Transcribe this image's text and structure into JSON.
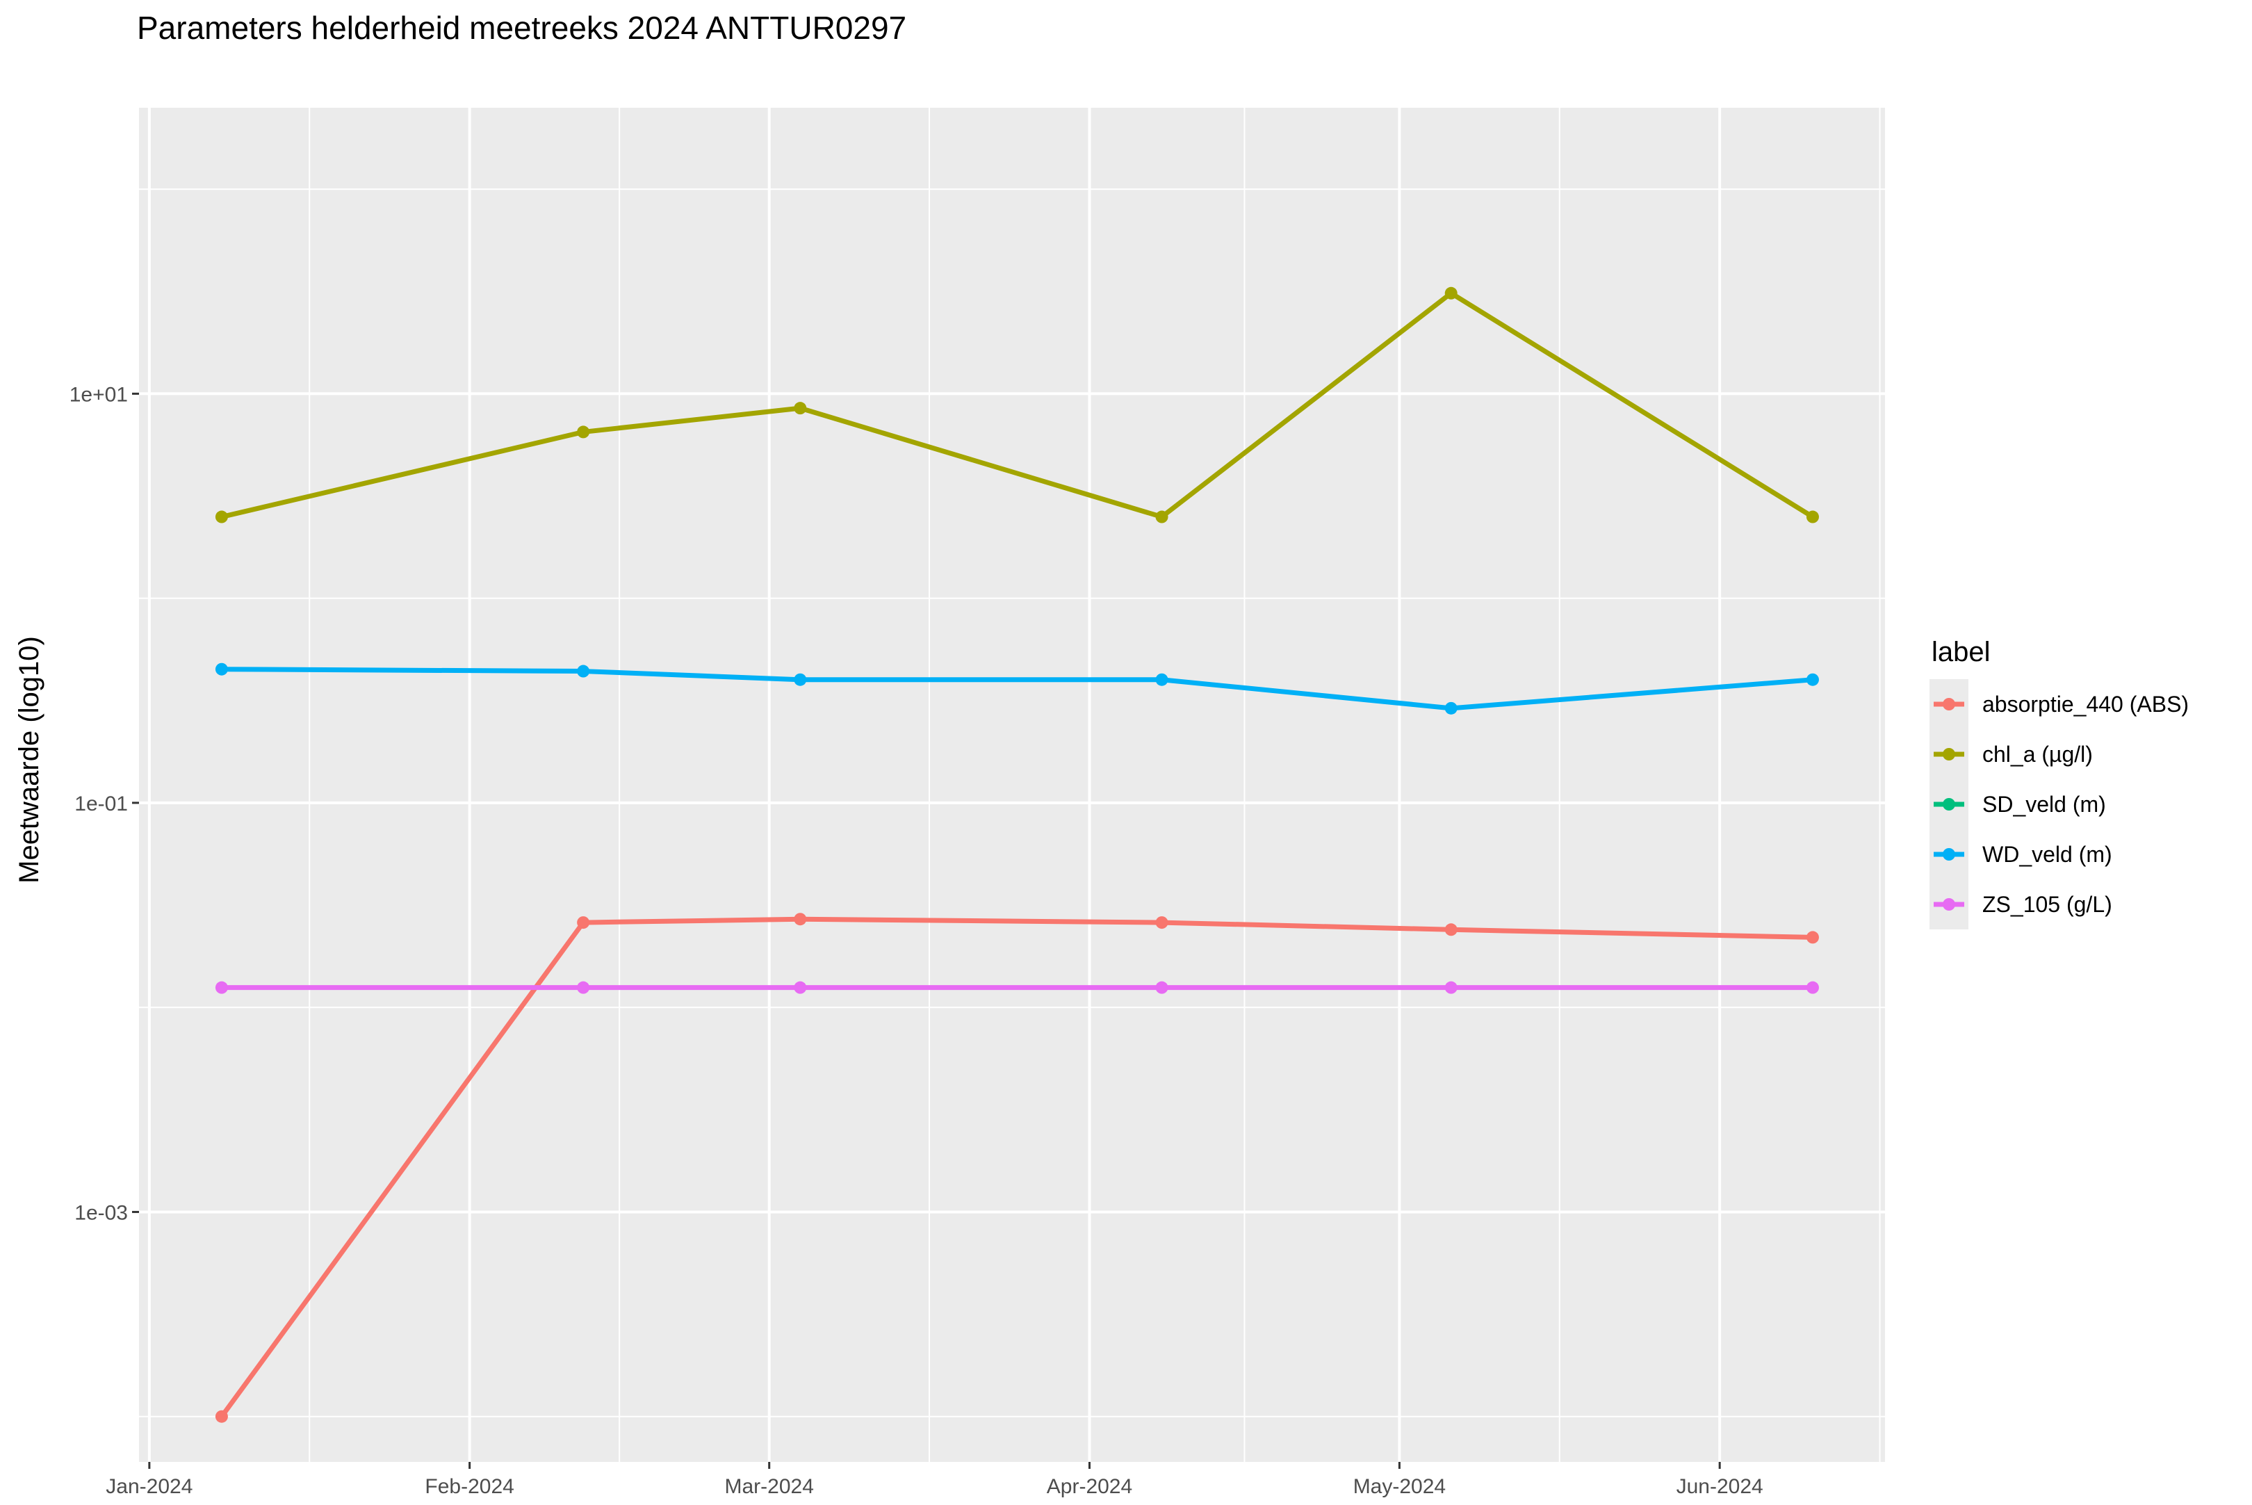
{
  "chart_data": {
    "type": "line",
    "title": "Parameters helderheid meetreeks 2024 ANTTUR0297",
    "xlabel": "",
    "ylabel": "Meetwaarde (log10)",
    "y_scale": "log10",
    "ylim": [
      6e-05,
      250
    ],
    "xlim": [
      "2023-12-31",
      "2024-06-17"
    ],
    "grid": true,
    "x_ticks": [
      {
        "date": "2024-01-01",
        "label": "Jan-2024"
      },
      {
        "date": "2024-02-01",
        "label": "Feb-2024"
      },
      {
        "date": "2024-03-01",
        "label": "Mar-2024"
      },
      {
        "date": "2024-04-01",
        "label": "Apr-2024"
      },
      {
        "date": "2024-05-01",
        "label": "May-2024"
      },
      {
        "date": "2024-06-01",
        "label": "Jun-2024"
      }
    ],
    "y_ticks": [
      {
        "value": 10,
        "label": "1e+01"
      },
      {
        "value": 0.1,
        "label": "1e-01"
      },
      {
        "value": 0.001,
        "label": "1e-03"
      }
    ],
    "x": [
      "2024-01-08",
      "2024-02-12",
      "2024-03-04",
      "2024-04-08",
      "2024-05-06",
      "2024-06-10"
    ],
    "series": [
      {
        "name": "absorptie_440 (ABS)",
        "color": "#F8766D",
        "values": [
          0.0001,
          0.026,
          0.027,
          0.026,
          0.024,
          0.022
        ]
      },
      {
        "name": "chl_a (µg/l)",
        "color": "#A3A500",
        "values": [
          2.5,
          6.5,
          8.5,
          2.5,
          31,
          2.5
        ]
      },
      {
        "name": "SD_veld (m)",
        "color": "#00BF7D",
        "values": [
          null,
          null,
          null,
          null,
          null,
          null
        ]
      },
      {
        "name": "WD_veld (m)",
        "color": "#00B0F6",
        "values": [
          0.45,
          0.44,
          0.4,
          0.4,
          0.29,
          0.4
        ]
      },
      {
        "name": "ZS_105 (g/L)",
        "color": "#E76BF3",
        "values": [
          0.0125,
          0.0125,
          0.0125,
          0.0125,
          0.0125,
          0.0125
        ]
      }
    ],
    "legend": {
      "title": "label",
      "position": "right"
    }
  }
}
